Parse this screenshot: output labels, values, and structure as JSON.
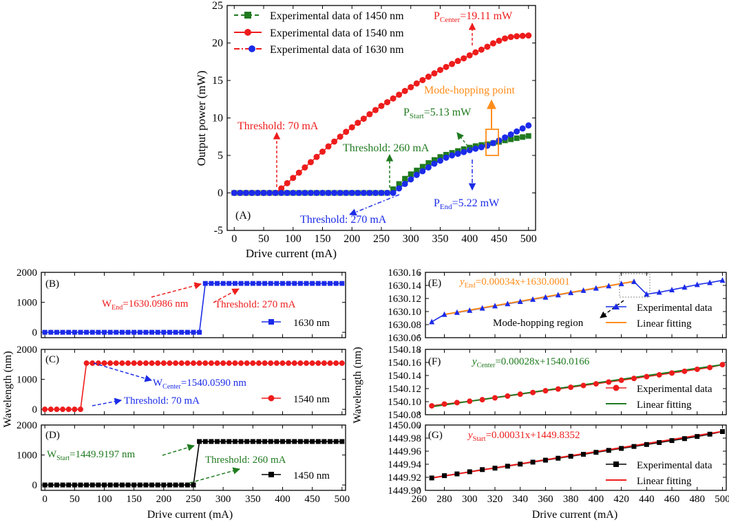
{
  "chart_data": [
    {
      "id": "A",
      "type": "line",
      "panel_label": "(A)",
      "xlabel": "Drive current (mA)",
      "ylabel": "Output power (mW)",
      "xlim": [
        -12,
        512
      ],
      "ylim": [
        -5,
        25
      ],
      "xticks": [
        0,
        50,
        100,
        150,
        200,
        250,
        300,
        350,
        400,
        450,
        500
      ],
      "yticks": [
        -5,
        0,
        5,
        10,
        15,
        20,
        25
      ],
      "series": [
        {
          "name": "Experimental data of 1450 nm",
          "color": "#1f7a1f",
          "marker": "square",
          "dash": "dashed",
          "x": [
            0,
            10,
            20,
            30,
            40,
            50,
            60,
            70,
            80,
            90,
            100,
            110,
            120,
            130,
            140,
            150,
            160,
            170,
            180,
            190,
            200,
            210,
            220,
            230,
            240,
            250,
            260,
            270,
            280,
            290,
            300,
            310,
            320,
            330,
            340,
            350,
            360,
            370,
            380,
            390,
            400,
            410,
            420,
            430,
            440,
            450,
            460,
            470,
            480,
            490,
            500
          ],
          "y": [
            0,
            0,
            0,
            0,
            0,
            0,
            0,
            0,
            0,
            0,
            0,
            0,
            0,
            0,
            0,
            0,
            0,
            0,
            0,
            0,
            0,
            0,
            0,
            0,
            0,
            0,
            0,
            0.5,
            1.2,
            1.9,
            2.5,
            3.0,
            3.5,
            4.0,
            4.4,
            4.8,
            5.1,
            5.35,
            5.6,
            5.85,
            6.05,
            6.25,
            6.4,
            6.5,
            6.65,
            6.8,
            7.0,
            7.15,
            7.3,
            7.45,
            7.6
          ]
        },
        {
          "name": "Experimental data of 1540 nm",
          "color": "#ee1c1c",
          "marker": "circle",
          "dash": "solid",
          "x": [
            0,
            10,
            20,
            30,
            40,
            50,
            60,
            70,
            80,
            90,
            100,
            110,
            120,
            130,
            140,
            150,
            160,
            170,
            180,
            190,
            200,
            210,
            220,
            230,
            240,
            250,
            260,
            270,
            280,
            290,
            300,
            310,
            320,
            330,
            340,
            350,
            360,
            370,
            380,
            390,
            400,
            410,
            420,
            430,
            440,
            450,
            460,
            470,
            480,
            490,
            500
          ],
          "y": [
            0,
            0,
            0,
            0,
            0,
            0,
            0,
            0,
            0.6,
            1.3,
            2.0,
            2.7,
            3.4,
            4.1,
            4.8,
            5.5,
            6.2,
            6.85,
            7.5,
            8.15,
            8.75,
            9.35,
            9.9,
            10.5,
            11.05,
            11.6,
            12.1,
            12.6,
            13.1,
            13.6,
            14.1,
            14.6,
            15.05,
            15.5,
            15.95,
            16.4,
            16.8,
            17.2,
            17.6,
            17.95,
            18.35,
            18.75,
            19.11,
            19.5,
            19.95,
            20.3,
            20.6,
            20.8,
            20.9,
            20.95,
            21.0
          ]
        },
        {
          "name": "Experimental data of 1630 nm",
          "color": "#1b2be8",
          "marker": "circle",
          "dash": "dashdot",
          "x": [
            0,
            10,
            20,
            30,
            40,
            50,
            60,
            70,
            80,
            90,
            100,
            110,
            120,
            130,
            140,
            150,
            160,
            170,
            180,
            190,
            200,
            210,
            220,
            230,
            240,
            250,
            260,
            270,
            280,
            290,
            300,
            310,
            320,
            330,
            340,
            350,
            360,
            370,
            380,
            390,
            400,
            410,
            420,
            430,
            440,
            450,
            460,
            470,
            480,
            490,
            500
          ],
          "y": [
            0,
            0,
            0,
            0,
            0,
            0,
            0,
            0,
            0,
            0,
            0,
            0,
            0,
            0,
            0,
            0,
            0,
            0,
            0,
            0,
            0,
            0,
            0,
            0,
            0,
            0,
            0,
            0,
            0.6,
            1.2,
            1.8,
            2.4,
            2.9,
            3.4,
            3.9,
            4.3,
            4.7,
            5.0,
            5.22,
            5.45,
            5.7,
            5.9,
            6.1,
            6.3,
            6.65,
            7.0,
            7.4,
            7.8,
            8.2,
            8.6,
            9.0
          ]
        }
      ],
      "annotations": {
        "p_center": "P",
        "p_center_sub": "Center",
        "p_center_val": "=19.11 mW",
        "threshold_1540": "Threshold: 70 mA",
        "threshold_1450": "Threshold: 260 mA",
        "threshold_1630": "Threshold: 270 mA",
        "p_start": "P",
        "p_start_sub": "Start",
        "p_start_val": "=5.13 mW",
        "p_end": "P",
        "p_end_sub": "End",
        "p_end_val": "=5.22 mW",
        "mode_hop": "Mode-hopping point"
      }
    },
    {
      "id": "B",
      "type": "line",
      "panel_label": "(B)",
      "xlim": [
        -6,
        506
      ],
      "ylim": [
        -180,
        2000
      ],
      "yticks": [
        0,
        1000,
        2000
      ],
      "series": [
        {
          "name": "1630 nm",
          "color": "#1b2be8",
          "marker": "square",
          "step_at": 270,
          "low": 0,
          "high": 1630.0986
        }
      ],
      "annotations": {
        "w": "W",
        "w_sub": "End",
        "w_val": "=1630.0986 nm",
        "threshold": "Threshold: 270 mA"
      }
    },
    {
      "id": "C",
      "type": "line",
      "panel_label": "(C)",
      "xlim": [
        -6,
        506
      ],
      "ylim": [
        -180,
        2000
      ],
      "yticks": [
        0,
        1000,
        2000
      ],
      "series": [
        {
          "name": "1540 nm",
          "color": "#ee1c1c",
          "marker": "circle",
          "step_at": 70,
          "low": 0,
          "high": 1540.059
        }
      ],
      "annotations": {
        "w": "W",
        "w_sub": "Center",
        "w_val": "=1540.0590 nm",
        "threshold": "Threshold: 70 mA"
      }
    },
    {
      "id": "D",
      "type": "line",
      "panel_label": "(D)",
      "xlim": [
        -6,
        506
      ],
      "ylim": [
        -180,
        2000
      ],
      "yticks": [
        0,
        1000,
        2000
      ],
      "series": [
        {
          "name": "1450 nm",
          "color": "#000000",
          "marker": "square",
          "step_at": 260,
          "low": 0,
          "high": 1449.9197
        }
      ],
      "annotations": {
        "w": "W",
        "w_sub": "Start",
        "w_val": "=1449.9197 nm",
        "threshold": "Threshold: 260 mA"
      }
    },
    {
      "id": "E",
      "type": "line",
      "panel_label": "(E)",
      "xlim": [
        265,
        503
      ],
      "ylim": [
        1630.06,
        1630.16
      ],
      "yticks": [
        1630.06,
        1630.08,
        1630.1,
        1630.12,
        1630.14,
        1630.16
      ],
      "series": [
        {
          "name": "Experimental data",
          "color": "#1b2be8",
          "marker": "triangle",
          "x": [
            270,
            280,
            290,
            300,
            310,
            320,
            330,
            340,
            350,
            360,
            370,
            380,
            390,
            400,
            410,
            420,
            430,
            440,
            450,
            460,
            470,
            480,
            490,
            500
          ],
          "y": [
            1630.0842,
            1630.0955,
            1630.0985,
            1630.1017,
            1630.1051,
            1630.1086,
            1630.1118,
            1630.1152,
            1630.1186,
            1630.1219,
            1630.1254,
            1630.1288,
            1630.1322,
            1630.1356,
            1630.1392,
            1630.1425,
            1630.1458,
            1630.1265,
            1630.1295,
            1630.1332,
            1630.1372,
            1630.1412,
            1630.1442,
            1630.1478
          ]
        },
        {
          "name": "Linear fitting",
          "color": "#ff8c1a",
          "line_from": [
            280,
            1630.0955
          ],
          "line_to": [
            430,
            1630.1462
          ]
        }
      ],
      "annotations": {
        "eq_y": "y",
        "eq_sub": "End",
        "eq_rest": "=0.00034x+1630.0001",
        "mode_region": "Mode-hopping region"
      }
    },
    {
      "id": "F",
      "type": "line",
      "panel_label": "(F)",
      "xlim": [
        265,
        503
      ],
      "ylim": [
        1540.08,
        1540.18
      ],
      "yticks": [
        1540.08,
        1540.1,
        1540.12,
        1540.14,
        1540.16,
        1540.18
      ],
      "series": [
        {
          "name": "Experimental data",
          "color": "#ee1c1c",
          "marker": "circle",
          "x": [
            270,
            280,
            290,
            300,
            310,
            320,
            330,
            340,
            350,
            360,
            370,
            380,
            390,
            400,
            410,
            420,
            430,
            440,
            450,
            460,
            470,
            480,
            490,
            500
          ],
          "y": [
            1540.0936,
            1540.0963,
            1540.0985,
            1540.1006,
            1540.103,
            1540.1058,
            1540.1085,
            1540.1114,
            1540.114,
            1540.1167,
            1540.1193,
            1540.122,
            1540.1247,
            1540.1273,
            1540.13,
            1540.1327,
            1540.1355,
            1540.1383,
            1540.141,
            1540.1438,
            1540.1465,
            1540.1495,
            1540.1523,
            1540.1566
          ]
        },
        {
          "name": "Linear fitting",
          "color": "#1f7a1f",
          "line_from": [
            270,
            1540.0922
          ],
          "line_to": [
            500,
            1540.1566
          ]
        }
      ],
      "annotations": {
        "eq_y": "y",
        "eq_sub": "Center",
        "eq_rest": "=0.00028x+1540.0166"
      }
    },
    {
      "id": "G",
      "type": "line",
      "panel_label": "(G)",
      "xlim": [
        265,
        503
      ],
      "ylim": [
        1449.9,
        1450.0
      ],
      "xlabel": "Drive current (mA)",
      "xticks": [
        260,
        280,
        300,
        320,
        340,
        360,
        380,
        400,
        420,
        440,
        460,
        480,
        500
      ],
      "yticks": [
        1449.9,
        1449.92,
        1449.94,
        1449.96,
        1449.98,
        1450.0
      ],
      "series": [
        {
          "name": "Experimental data",
          "color": "#000000",
          "marker": "square",
          "x": [
            270,
            280,
            290,
            300,
            310,
            320,
            330,
            340,
            350,
            360,
            370,
            380,
            390,
            400,
            410,
            420,
            430,
            440,
            450,
            460,
            470,
            480,
            490,
            500
          ],
          "y": [
            1449.919,
            1449.9225,
            1449.9252,
            1449.9285,
            1449.9318,
            1449.934,
            1449.937,
            1449.9402,
            1449.9432,
            1449.9462,
            1449.9492,
            1449.9522,
            1449.9552,
            1449.9582,
            1449.9612,
            1449.9642,
            1449.9672,
            1449.9702,
            1449.9732,
            1449.9762,
            1449.9792,
            1449.9825,
            1449.986,
            1449.99
          ]
        },
        {
          "name": "Linear fitting",
          "color": "#ee1c1c",
          "line_from": [
            270,
            1449.9189
          ],
          "line_to": [
            500,
            1449.9902
          ]
        }
      ],
      "annotations": {
        "eq_y": "y",
        "eq_sub": "Start",
        "eq_rest": "=0.00031x+1449.8352"
      }
    }
  ],
  "shared": {
    "left_xlabel": "Drive current (mA)",
    "left_ylabel": "Wavelength (nm)",
    "right_ylabel": "Wavelength (nm)",
    "left_xticks": [
      0,
      50,
      100,
      150,
      200,
      250,
      300,
      350,
      400,
      450,
      500
    ]
  }
}
